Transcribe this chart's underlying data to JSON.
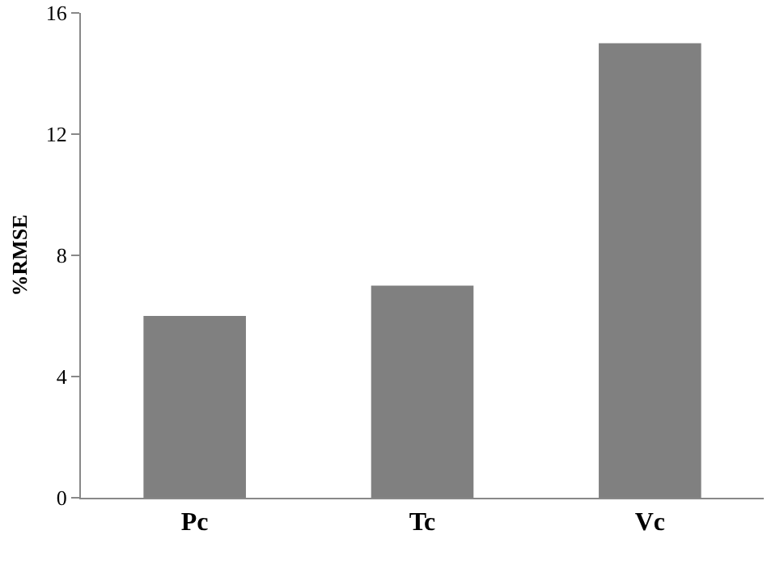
{
  "chart_data": {
    "type": "bar",
    "ylabel": "%RMSE",
    "categories": [
      "Pc",
      "Tc",
      "Vc"
    ],
    "values": [
      6,
      7,
      15
    ],
    "color": "#808080",
    "ylim": [
      0,
      16
    ],
    "yticks": [
      0,
      4,
      8,
      12,
      16
    ],
    "grid": false
  }
}
